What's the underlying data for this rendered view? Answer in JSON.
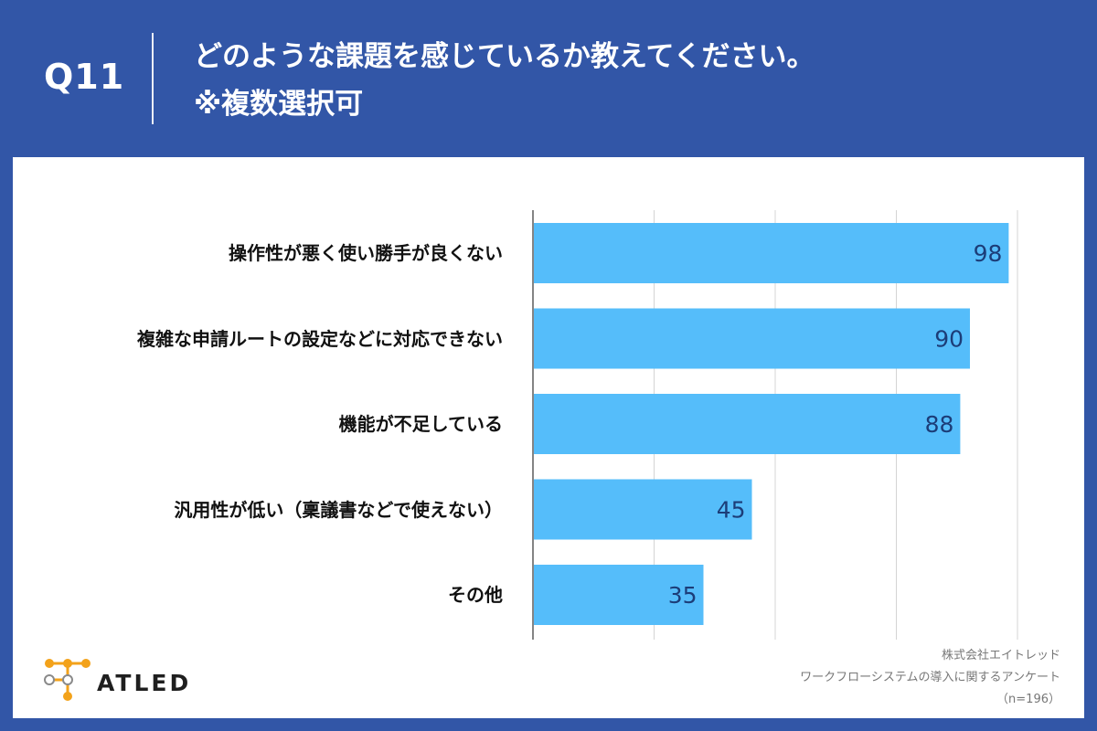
{
  "header": {
    "question_number": "Q11",
    "title_line1": "どのような課題を感じているか教えてください。",
    "title_line2": "※複数選択可"
  },
  "chart_data": {
    "type": "bar",
    "orientation": "horizontal",
    "categories": [
      "操作性が悪く使い勝手が良くない",
      "複雑な申請ルートの設定などに対応できない",
      "機能が不足している",
      "汎用性が低い（稟議書などで使えない）",
      "その他"
    ],
    "values": [
      98,
      90,
      88,
      45,
      35
    ],
    "xlim": [
      0,
      100
    ],
    "grid": true,
    "bar_color": "#55bdfa",
    "label_color": "#1c3d78",
    "title": "",
    "xlabel": "",
    "ylabel": ""
  },
  "footer": {
    "company": "株式会社エイトレッド",
    "survey": "ワークフローシステムの導入に関するアンケート",
    "sample": "（n=196）",
    "logo_text": "ATLED"
  },
  "colors": {
    "header_bg": "#3256a7",
    "panel_bg": "#ffffff",
    "logo_orange": "#f3a21a"
  }
}
